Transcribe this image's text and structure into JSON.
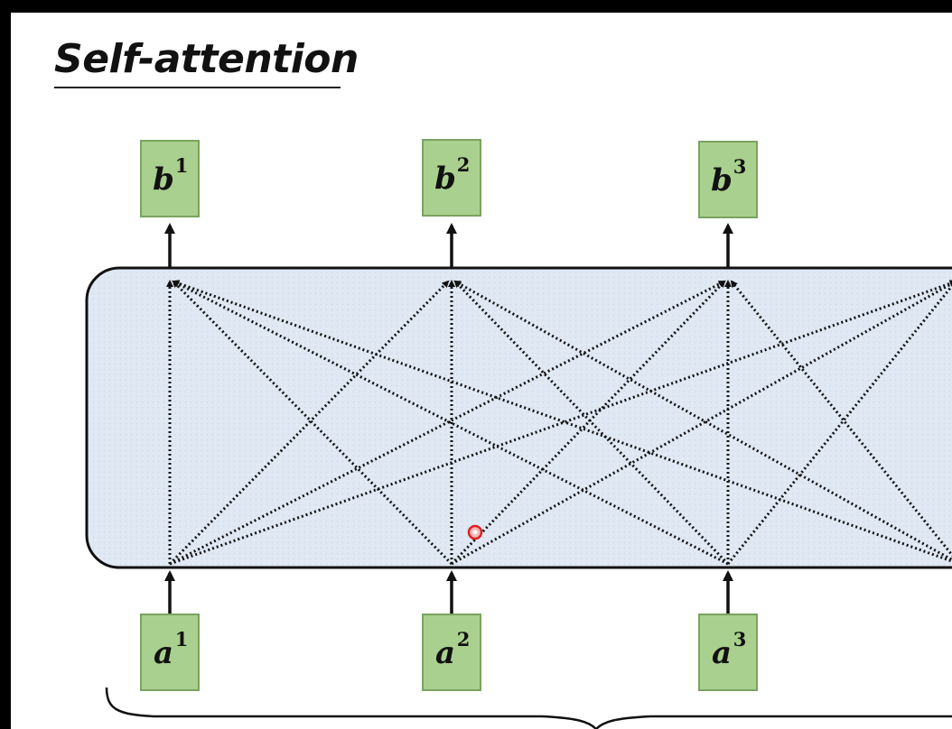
{
  "slide": {
    "title": "Self-attention"
  },
  "block": {
    "fill": "#dfe8f3",
    "border": "#111111"
  },
  "node_style": {
    "fill": "#a9d08e",
    "border": "#7aa35f"
  },
  "inputs": [
    {
      "base": "a",
      "sup": "1"
    },
    {
      "base": "a",
      "sup": "2"
    },
    {
      "base": "a",
      "sup": "3"
    }
  ],
  "outputs": [
    {
      "base": "b",
      "sup": "1"
    },
    {
      "base": "b",
      "sup": "2"
    },
    {
      "base": "b",
      "sup": "3"
    }
  ]
}
